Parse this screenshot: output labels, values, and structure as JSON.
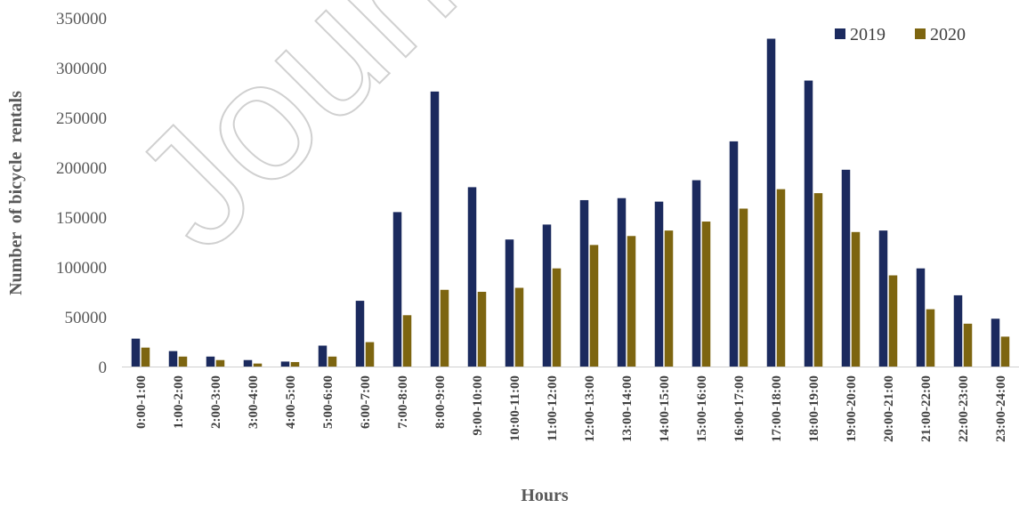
{
  "watermark": "Journal",
  "chart_data": {
    "type": "bar",
    "title": "",
    "xlabel": "Hours",
    "ylabel": "Number  of bicycle  rentals",
    "ylim": [
      0,
      350000
    ],
    "yticks": [
      0,
      50000,
      100000,
      150000,
      200000,
      250000,
      300000,
      350000
    ],
    "grid": false,
    "legend_position": "top-right",
    "colors": {
      "2019": "#1b2a5e",
      "2020": "#7d6510"
    },
    "categories": [
      "0:00-1:00",
      "1:00-2:00",
      "2:00-3:00",
      "3:00-4:00",
      "4:00-5:00",
      "5:00-6:00",
      "6:00-7:00",
      "7:00-8:00",
      "8:00-9:00",
      "9:00-10:00",
      "10:00-11:00",
      "11:00-12:00",
      "12:00-13:00",
      "13:00-14:00",
      "14:00-15:00",
      "15:00-16:00",
      "16:00-17:00",
      "17:00-18:00",
      "18:00-19:00",
      "19:00-20:00",
      "20:00-21:00",
      "21:00-22:00",
      "22:00-23:00",
      "23:00-24:00"
    ],
    "series": [
      {
        "name": "2019",
        "values": [
          28000,
          15500,
          10000,
          6500,
          5000,
          21000,
          66000,
          155000,
          276000,
          180000,
          127500,
          142500,
          167000,
          169000,
          165500,
          187000,
          226000,
          329000,
          287000,
          197500,
          136500,
          98500,
          71500,
          48000
        ]
      },
      {
        "name": "2020",
        "values": [
          19000,
          10000,
          6500,
          3000,
          4500,
          10000,
          24500,
          51500,
          77000,
          75000,
          79000,
          98500,
          122000,
          131000,
          136500,
          145500,
          158500,
          178000,
          174000,
          135000,
          91500,
          57500,
          43000,
          30000
        ]
      }
    ]
  }
}
